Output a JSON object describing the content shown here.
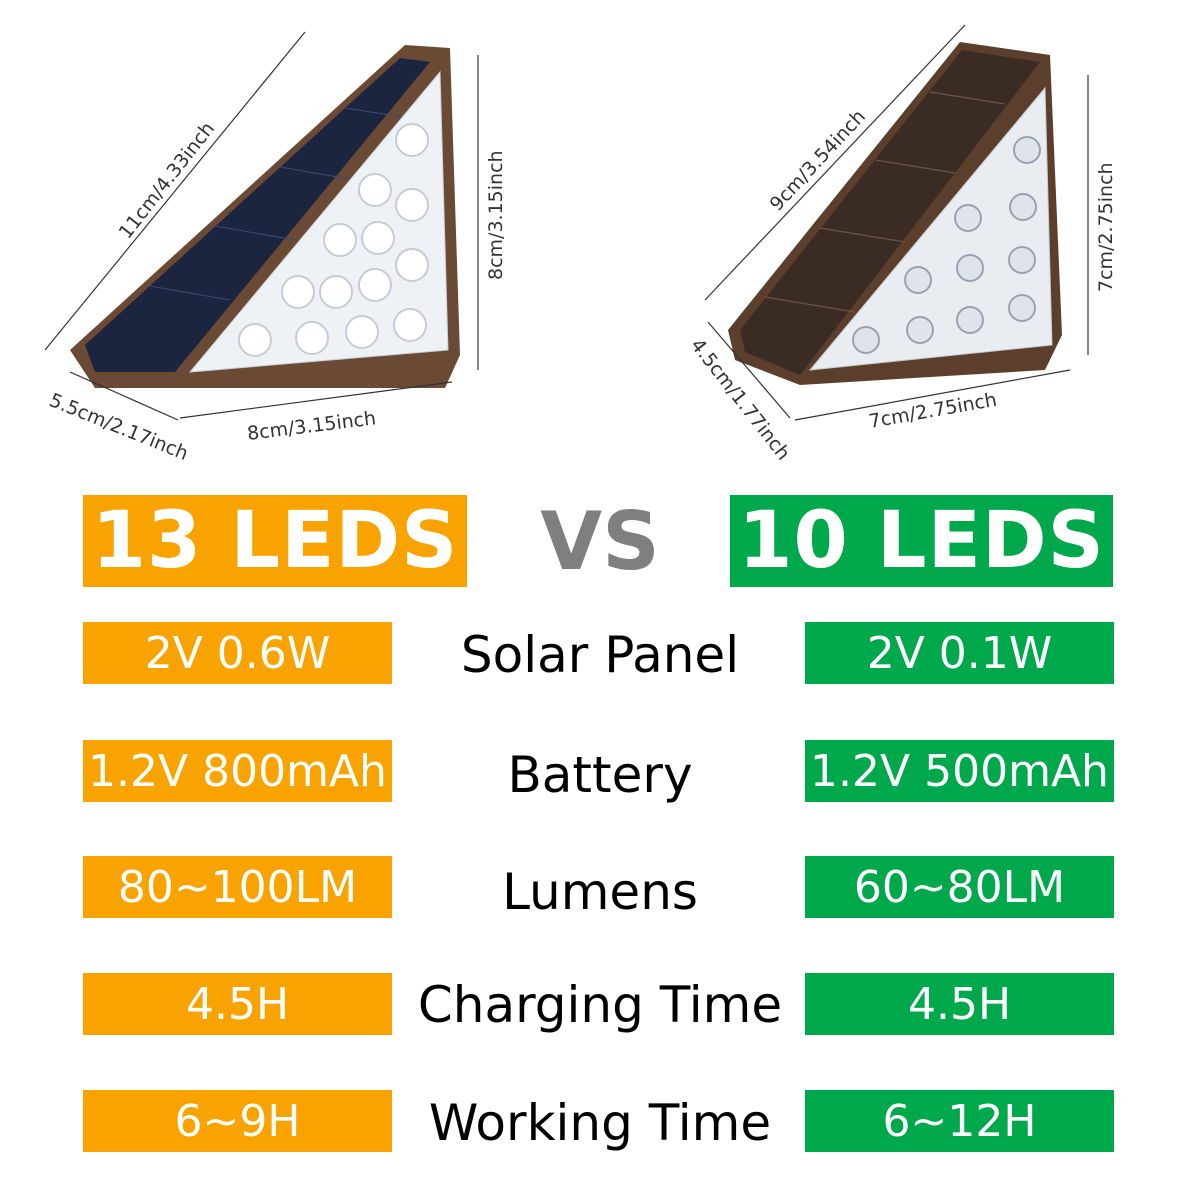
{
  "colors": {
    "left_accent": "#F9A300",
    "right_accent": "#00A84C",
    "vs": "#7F7F7F"
  },
  "left_product": {
    "dims": {
      "hypotenuse": "11cm/4.33inch",
      "height": "8cm/3.15inch",
      "depth": "5.5cm/2.17inch",
      "width": "8cm/3.15inch"
    }
  },
  "right_product": {
    "dims": {
      "hypotenuse": "9cm/3.54inch",
      "height": "7cm/2.75inch",
      "depth": "4.5cm/1.77inch",
      "width": "7cm/2.75inch"
    }
  },
  "header": {
    "left": "13 LEDS",
    "vs": "VS",
    "right": "10 LEDS"
  },
  "rows": [
    {
      "label": "Solar Panel",
      "left": "2V 0.6W",
      "right": "2V 0.1W"
    },
    {
      "label": "Battery",
      "left": "1.2V 800mAh",
      "right": "1.2V 500mAh"
    },
    {
      "label": "Lumens",
      "left": "80~100LM",
      "right": "60~80LM"
    },
    {
      "label": "Charging Time",
      "left": "4.5H",
      "right": "4.5H"
    },
    {
      "label": "Working Time",
      "left": "6~9H",
      "right": "6~12H"
    }
  ]
}
